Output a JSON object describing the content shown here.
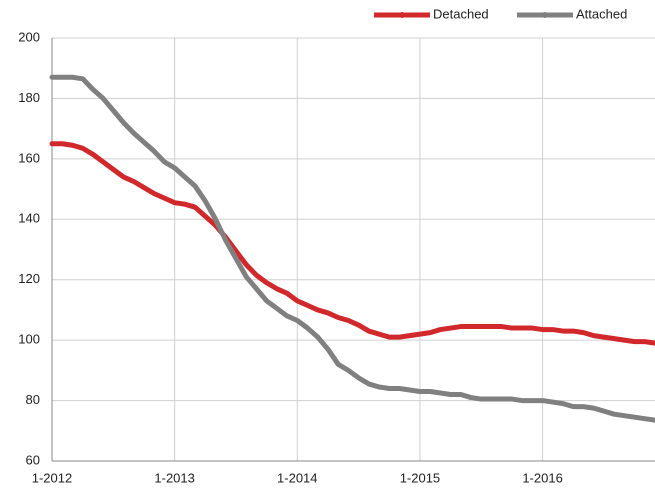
{
  "chart_data": {
    "type": "line",
    "categories": [
      "1-2012",
      null,
      null,
      null,
      null,
      null,
      null,
      null,
      null,
      null,
      null,
      null,
      "1-2013",
      null,
      null,
      null,
      null,
      null,
      null,
      null,
      null,
      null,
      null,
      null,
      "1-2014",
      null,
      null,
      null,
      null,
      null,
      null,
      null,
      null,
      null,
      null,
      null,
      "1-2015",
      null,
      null,
      null,
      null,
      null,
      null,
      null,
      null,
      null,
      null,
      null,
      "1-2016",
      null,
      null,
      null,
      null,
      null,
      null,
      null,
      null,
      null,
      null,
      null
    ],
    "series": [
      {
        "name": "Detached",
        "color": "#d0282b",
        "values": [
          165,
          165,
          164.5,
          163.5,
          161.5,
          159,
          156.5,
          154,
          152.5,
          150.5,
          148.5,
          147,
          145.5,
          145,
          144,
          141,
          138,
          134,
          129.5,
          125,
          121.5,
          119,
          117,
          115.5,
          113,
          111.5,
          110,
          109,
          107.5,
          106.5,
          105,
          103,
          102,
          101,
          101,
          101.5,
          102,
          102.5,
          103.5,
          104,
          104.5,
          104.5,
          104.5,
          104.5,
          104.5,
          104,
          104,
          104,
          103.5,
          103.5,
          103,
          103,
          102.5,
          101.5,
          101,
          100.5,
          100,
          99.5,
          99.5,
          99
        ]
      },
      {
        "name": "Attached",
        "color": "#808080",
        "values": [
          187,
          187,
          187,
          186.5,
          183,
          180,
          176,
          172,
          168.5,
          165.5,
          162.5,
          159,
          157,
          154,
          151,
          146,
          140,
          133,
          127,
          121,
          117,
          113,
          110.5,
          108,
          106.5,
          104,
          101,
          97,
          92,
          90,
          87.5,
          85.5,
          84.5,
          84,
          84,
          83.5,
          83,
          83,
          82.5,
          82,
          82,
          81,
          80.5,
          80.5,
          80.5,
          80.5,
          80,
          80,
          80,
          79.5,
          79,
          78,
          78,
          77.5,
          76.5,
          75.5,
          75,
          74.5,
          74,
          73.5
        ]
      }
    ],
    "ylim": [
      60,
      200
    ],
    "yticks": [
      60,
      80,
      100,
      120,
      140,
      160,
      180,
      200
    ],
    "grid": true,
    "legend": "top-right"
  }
}
